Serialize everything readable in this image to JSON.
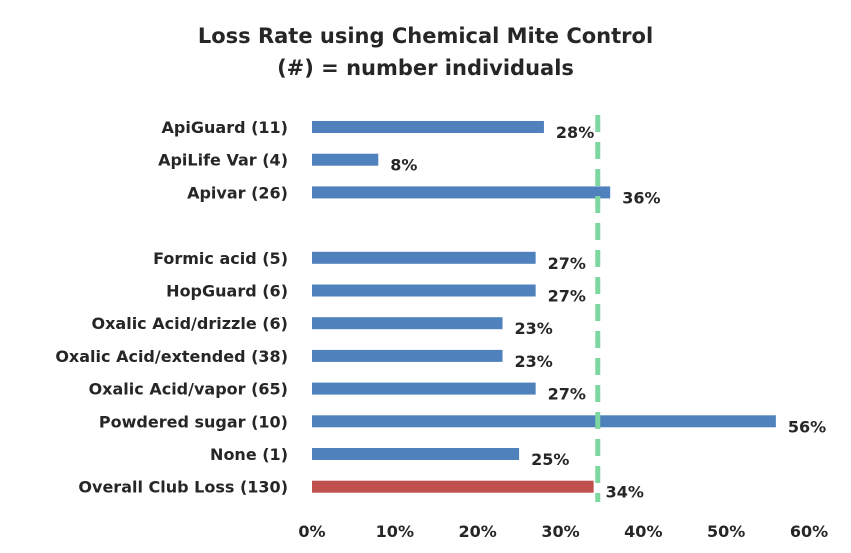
{
  "chart_data": {
    "type": "bar",
    "orientation": "horizontal",
    "title": "Loss Rate using Chemical Mite Control",
    "subtitle": "(#) = number individuals",
    "categories": [
      "ApiGuard (11)",
      "ApiLife Var (4)",
      "Apivar (26)",
      "",
      "Formic acid (5)",
      "HopGuard (6)",
      "Oxalic Acid/drizzle (6)",
      "Oxalic Acid/extended (38)",
      "Oxalic Acid/vapor (65)",
      "Powdered sugar (10)",
      "None (1)",
      "Overall Club Loss (130)"
    ],
    "values": [
      28,
      8,
      36,
      null,
      27,
      27,
      23,
      23,
      27,
      56,
      25,
      34
    ],
    "value_labels": [
      "28%",
      "8%",
      "36%",
      "",
      "27%",
      "27%",
      "23%",
      "23%",
      "27%",
      "56%",
      "25%",
      "34%"
    ],
    "bar_colors": [
      "#4f81bd",
      "#4f81bd",
      "#4f81bd",
      "#4f81bd",
      "#4f81bd",
      "#4f81bd",
      "#4f81bd",
      "#4f81bd",
      "#4f81bd",
      "#4f81bd",
      "#4f81bd",
      "#c0504d"
    ],
    "xlim": [
      0,
      60
    ],
    "x_ticks": [
      0,
      10,
      20,
      30,
      40,
      50,
      60
    ],
    "x_tick_labels": [
      "0%",
      "10%",
      "20%",
      "30%",
      "40%",
      "50%",
      "60%"
    ],
    "reference_line": {
      "value": 34.5,
      "style": "dashed",
      "color": "#7ed6a0"
    },
    "grid": false,
    "legend": "none"
  }
}
